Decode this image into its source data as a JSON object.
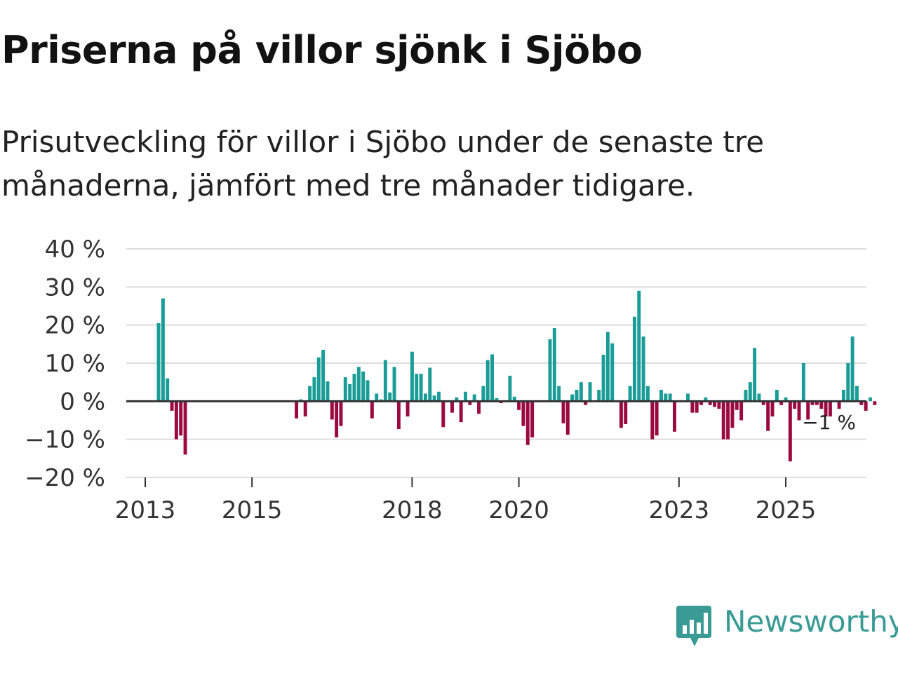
{
  "title": "Priserna på villor sjönk i Sjöbo",
  "subtitle": "Prisutveckling för villor i Sjöbo under de senaste tre månaderna, jämfört med tre månader tidigare.",
  "brand": {
    "name": "Newsworthy",
    "color": "#3a9a94",
    "icon": "bar-chart-speech-bubble-icon"
  },
  "colors": {
    "positive": "#1a9c97",
    "negative": "#9b0a3e",
    "grid": "#dddddd",
    "zero": "#333333"
  },
  "chart_data": {
    "type": "bar",
    "title": "Priserna på villor sjönk i Sjöbo",
    "ylabel": "",
    "xlabel": "",
    "ylim": [
      -20,
      40
    ],
    "y_ticks": [
      40,
      30,
      20,
      10,
      0,
      -10,
      -20
    ],
    "y_tick_labels": [
      "40 %",
      "30 %",
      "20 %",
      "10 %",
      "0 %",
      "−10 %",
      "−20 %"
    ],
    "x_tick_years": [
      2013,
      2015,
      2018,
      2020,
      2023,
      2025
    ],
    "x_tick_labels": [
      "2013",
      "2015",
      "2018",
      "2020",
      "2023",
      "2025"
    ],
    "start": {
      "year": 2012,
      "month": 9
    },
    "months_per_year": 12,
    "values": [
      null,
      null,
      null,
      null,
      null,
      null,
      null,
      20.5,
      27,
      6,
      -2.5,
      -10,
      -9,
      -14,
      null,
      null,
      null,
      null,
      null,
      null,
      null,
      null,
      null,
      null,
      null,
      null,
      null,
      null,
      null,
      null,
      null,
      null,
      null,
      null,
      null,
      null,
      null,
      null,
      -4.5,
      0.5,
      -4,
      4,
      6.3,
      11.5,
      13.5,
      5.2,
      -4.8,
      -9.5,
      -6.5,
      6.3,
      4.5,
      7.2,
      9,
      7.8,
      5.5,
      -4.5,
      2,
      0.5,
      10.8,
      2.3,
      9,
      -7.3,
      null,
      -4,
      13,
      7.2,
      7.2,
      2,
      8.8,
      1.5,
      2.5,
      -6.8,
      null,
      -3,
      1,
      -5.5,
      2.5,
      -1,
      1.8,
      -3.3,
      4,
      10.8,
      12.3,
      0.8,
      -0.5,
      null,
      6.7,
      1.2,
      -2.3,
      -6.5,
      -11.5,
      -9.5,
      null,
      null,
      null,
      16.3,
      19.2,
      4,
      -5.8,
      -8.8,
      1.8,
      3,
      5,
      -1,
      5,
      null,
      3,
      12.2,
      18.2,
      15.2,
      null,
      -7,
      -6,
      4,
      22.2,
      29,
      17,
      4,
      -10,
      -9,
      3,
      2,
      2,
      -8,
      null,
      null,
      2,
      -3,
      -3,
      -1,
      1,
      -1,
      -1.5,
      -2,
      -10,
      -10,
      -7,
      -2.3,
      -5,
      3,
      5,
      14,
      2,
      -1,
      -7.8,
      -4,
      3,
      -1,
      1,
      -15.8,
      -2,
      -5,
      10,
      -4.8,
      -1,
      -1,
      -2,
      -4,
      -4,
      null,
      -2,
      3,
      10,
      17,
      4,
      -1,
      -2.5,
      1,
      -1
    ],
    "last_value_label": "−1 %"
  }
}
